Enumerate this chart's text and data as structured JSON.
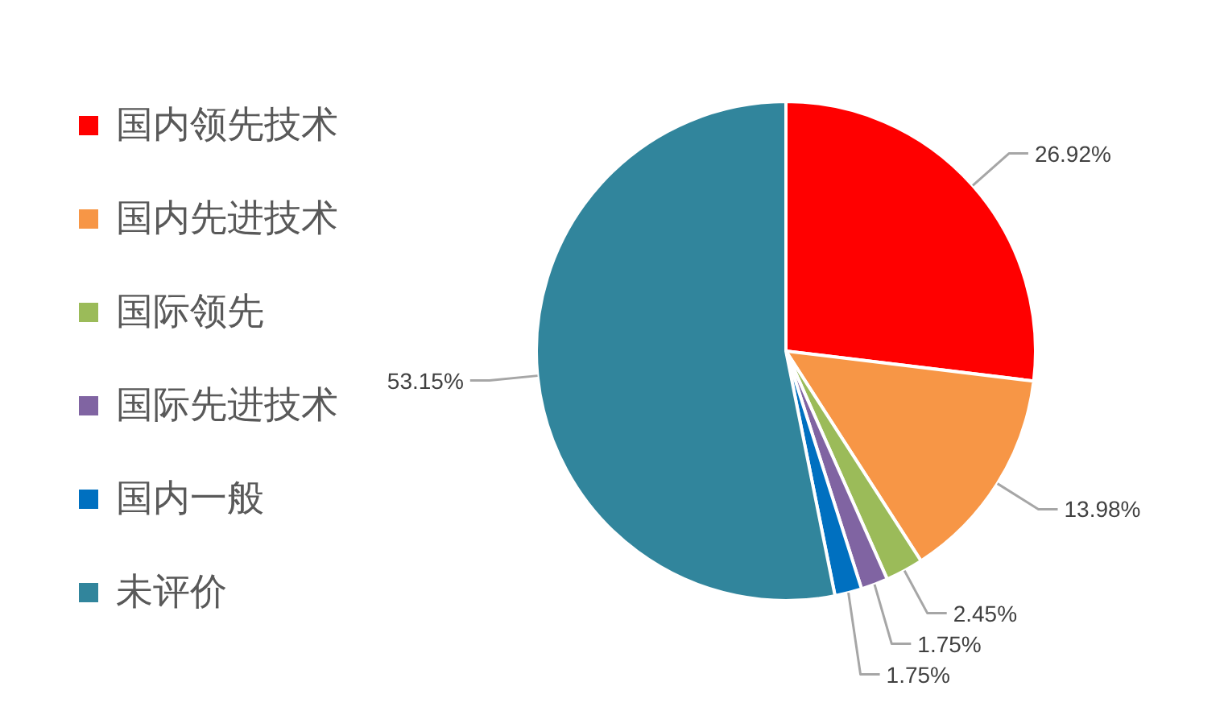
{
  "chart_data": {
    "type": "pie",
    "categories": [
      "国内领先技术",
      "国内先进技术",
      "国际领先",
      "国际先进技术",
      "国内一般",
      "未评价"
    ],
    "values": [
      26.92,
      13.98,
      2.45,
      1.75,
      1.75,
      53.15
    ],
    "colors": [
      "#ff0000",
      "#f79646",
      "#9bbb59",
      "#8064a2",
      "#0070c0",
      "#31859c"
    ],
    "value_labels": [
      "26.92%",
      "13.98%",
      "2.45%",
      "1.75%",
      "1.75%",
      "53.15%"
    ],
    "legend": "left"
  }
}
